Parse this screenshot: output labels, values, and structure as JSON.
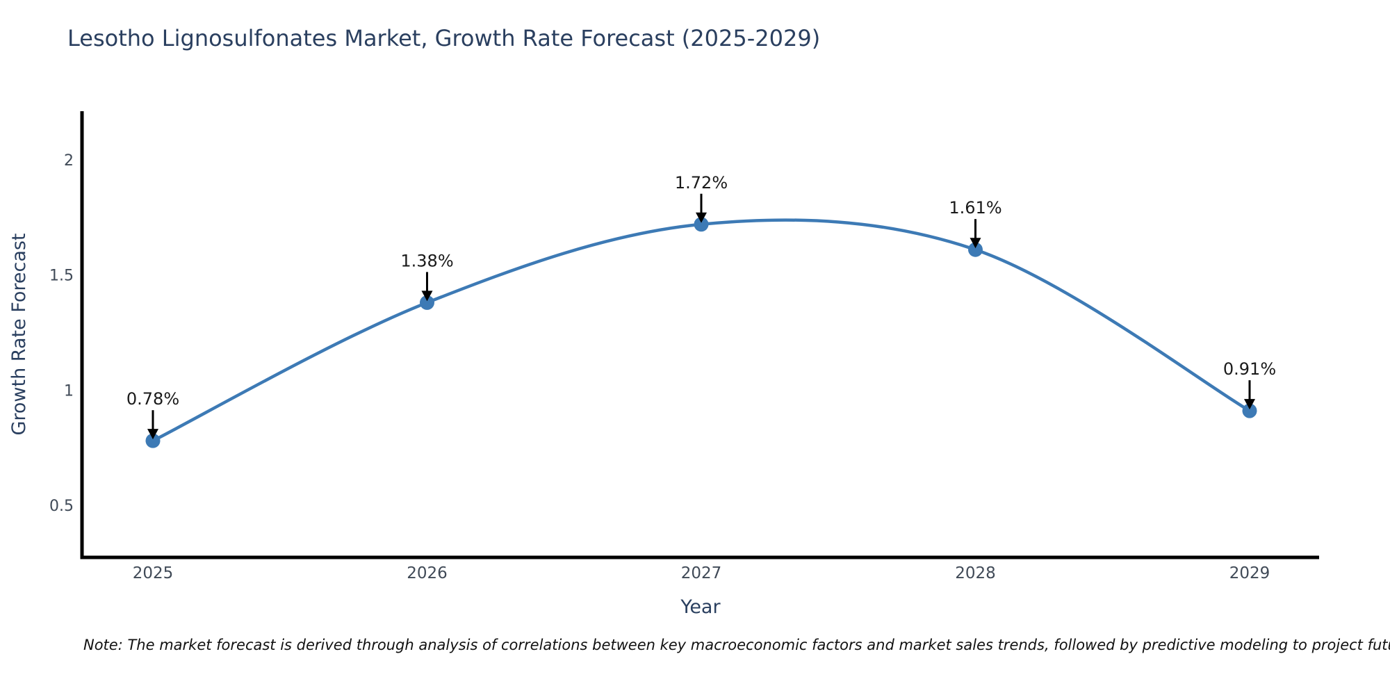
{
  "title": "Lesotho Lignosulfonates Market, Growth Rate Forecast (2025-2029)",
  "note": "Note: The market forecast is derived through analysis of correlations between key macroeconomic factors and market sales trends, followed by predictive modeling to project future sales",
  "chart_data": {
    "type": "line",
    "title": "Lesotho Lignosulfonates Market, Growth Rate Forecast (2025-2029)",
    "x": [
      "2025",
      "2026",
      "2027",
      "2028",
      "2029"
    ],
    "values": [
      0.78,
      1.38,
      1.72,
      1.61,
      0.91
    ],
    "point_labels": [
      "0.78%",
      "1.38%",
      "1.72%",
      "1.61%",
      "0.91%"
    ],
    "xlabel": "Year",
    "ylabel": "Growth Rate Forecast",
    "yticks": [
      0.5,
      1,
      1.5,
      2
    ],
    "ylim": [
      0.27,
      2.21
    ],
    "line_shape": "spline",
    "grid": false,
    "legend_position": "none",
    "annotation_style": "black arrow pointing down at each marker with percent label above"
  },
  "colors": {
    "line": "#3d7ab5",
    "marker": "#3d7ab5",
    "spine": "#000000",
    "arrow": "#000000",
    "title_text": "#2a3f5f",
    "axis_title_text": "#2a3f5f",
    "tick_text": "#404a57",
    "annotation_text": "#1a1a1a",
    "background": "#ffffff"
  }
}
